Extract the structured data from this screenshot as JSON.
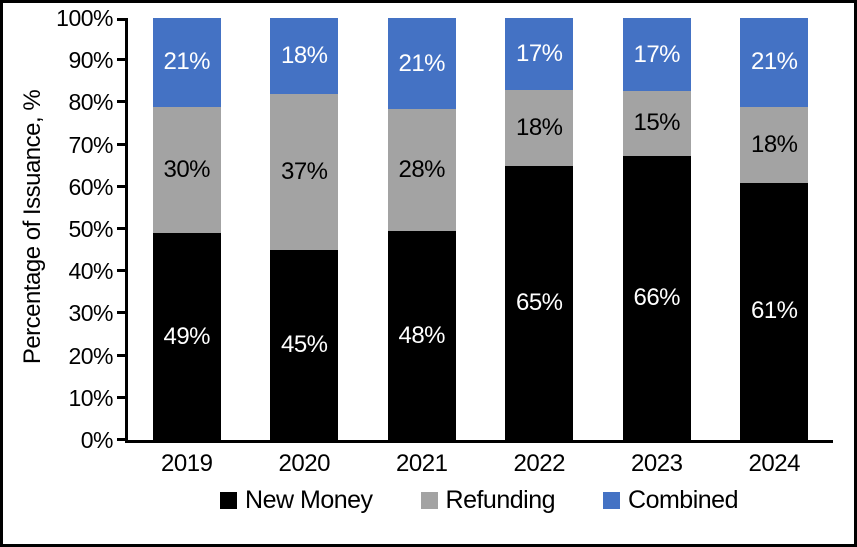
{
  "chart_data": {
    "type": "bar",
    "stacked": true,
    "title": "",
    "xlabel": "",
    "ylabel": "Percentage of Issuance, %",
    "ylim": [
      0,
      100
    ],
    "ytick_step": 10,
    "yticks": [
      "0%",
      "10%",
      "20%",
      "30%",
      "40%",
      "50%",
      "60%",
      "70%",
      "80%",
      "90%",
      "100%"
    ],
    "grid": false,
    "legend_position": "bottom",
    "label_format": "percent",
    "categories": [
      "2019",
      "2020",
      "2021",
      "2022",
      "2023",
      "2024"
    ],
    "series": [
      {
        "name": "New Money",
        "color": "#000000",
        "label_color": "#ffffff",
        "values": [
          49,
          45,
          48,
          65,
          66,
          61
        ]
      },
      {
        "name": "Refunding",
        "color": "#a3a3a3",
        "label_color": "#000000",
        "values": [
          30,
          37,
          28,
          18,
          15,
          18
        ]
      },
      {
        "name": "Combined",
        "color": "#4472c4",
        "label_color": "#ffffff",
        "values": [
          21,
          18,
          21,
          17,
          17,
          21
        ]
      }
    ]
  }
}
